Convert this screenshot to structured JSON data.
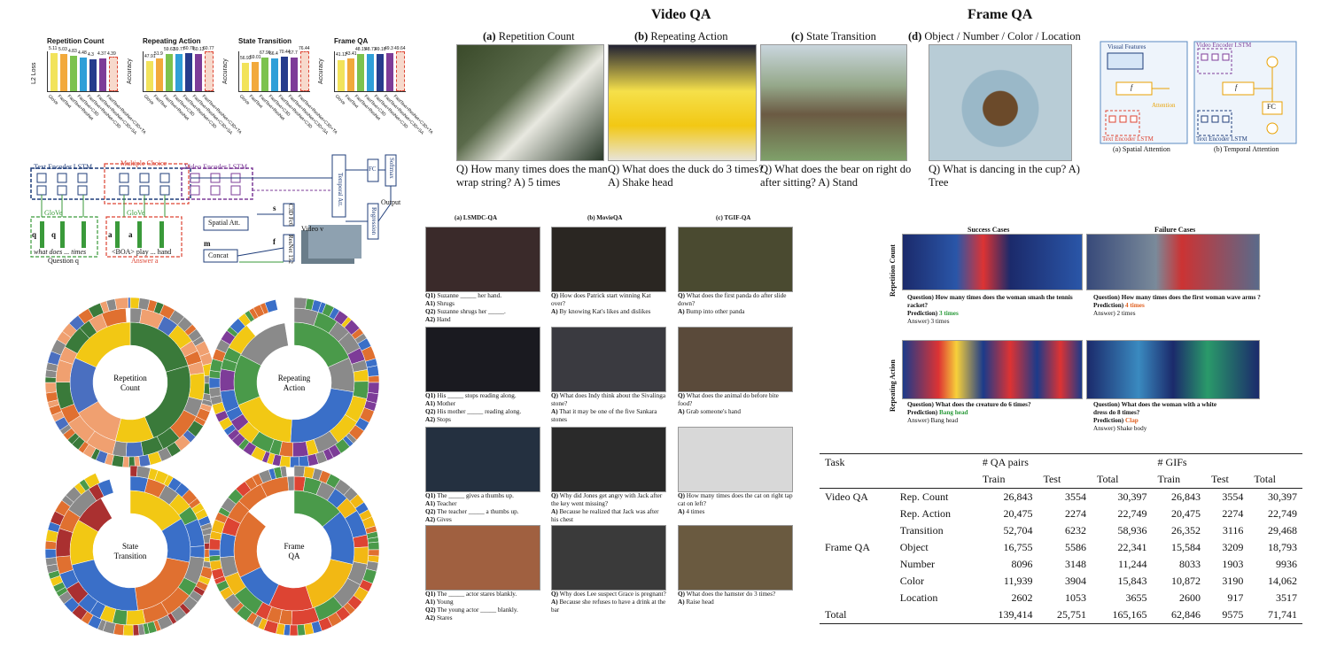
{
  "headers": {
    "video_qa": "Video QA",
    "frame_qa": "Frame QA"
  },
  "top_panels": [
    {
      "id": "(a)",
      "title": "Repetition Count",
      "q": "Q) How many times does the man wrap string?",
      "a": "A) 5 times"
    },
    {
      "id": "(b)",
      "title": "Repeating Action",
      "q": "Q) What does the duck do 3 times?",
      "a": "A) Shake head"
    },
    {
      "id": "(c)",
      "title": "State Transition",
      "q": "Q) What does the bear on right do after sitting?",
      "a": "A) Stand"
    },
    {
      "id": "(d)",
      "title": "Object / Number / Color / Location",
      "q": "Q) What is dancing in the cup?",
      "a": "A) Tree"
    }
  ],
  "bar_charts": [
    {
      "title": "Repetition Count",
      "ylabel": "L2 Loss",
      "values": [
        5.11,
        5.03,
        4.83,
        4.48,
        4.3,
        4.37,
        4.39
      ],
      "labels": [
        "GloVe",
        "FastText",
        "FastText+ResNet",
        "FastText+C3D",
        "FastText+ResNet+C3D",
        "FastText+ResNet+C3D+SA",
        "FastText+ResNet+C3D+TA"
      ]
    },
    {
      "title": "Repeating Action",
      "ylabel": "Accuracy",
      "values": [
        47.91,
        51.9,
        59.63,
        59.77,
        60.78,
        60.13,
        60.77
      ],
      "labels": [
        "GloVe",
        "FastText",
        "FastText+ResNet",
        "FastText+C3D",
        "FastText+ResNet+C3D",
        "FastText+ResNet+C3D+SA",
        "FastText+ResNet+C3D+TA"
      ]
    },
    {
      "title": "State Transition",
      "ylabel": "Accuracy",
      "values": [
        56.93,
        59.01,
        67.96,
        66.4,
        70.44,
        67.7,
        76.44
      ],
      "labels": [
        "GloVe",
        "FastText",
        "FastText+ResNet",
        "FastText+C3D",
        "FastText+ResNet+C3D",
        "FastText+ResNet+C3D+SA",
        "FastText+ResNet+C3D+TA"
      ]
    },
    {
      "title": "Frame QA",
      "ylabel": "Accuracy",
      "values": [
        41.12,
        43.41,
        48.15,
        48.73,
        49.16,
        49.3,
        49.64
      ],
      "labels": [
        "GloVe",
        "FastText",
        "FastText+ResNet",
        "FastText+C3D",
        "FastText+ResNet+C3D",
        "FastText+ResNet+C3D+SA",
        "FastText+ResNet+C3D+TA"
      ]
    }
  ],
  "bar_colors": [
    "#f2e35b",
    "#f2a93b",
    "#7cc24e",
    "#2f9fd8",
    "#263c8c",
    "#7d3c98",
    "#f0a080"
  ],
  "architecture": {
    "text_encoder": "Text Encoder LSTM",
    "multiple_choice": "Multiple Choice",
    "video_encoder": "Video Encoder LSTM",
    "temporal_att": "Temporal Att.",
    "fc": "FC",
    "softmax": "Softmax",
    "output": "Output",
    "regression": "Regression",
    "spatial_att": "Spatial Att.",
    "concat": "Concat",
    "glove1": "GloVe",
    "glove2": "GloVe",
    "question": "Question q",
    "answer": "Answer a",
    "q_words": "what    does ...  times",
    "a_words": "<BOA>  play ...  hand",
    "c3d": "C3D Fc6",
    "resnet": "ResNet 152",
    "video": "Video v",
    "st": "s",
    "ft": "f",
    "mt": "m",
    "q1": "q",
    "q2": "q",
    "a1": "a",
    "a2": "a"
  },
  "sunbursts": [
    {
      "label": "Repetition\nCount",
      "line1": "Repetition",
      "line2": "Count"
    },
    {
      "label": "Repeating\nAction",
      "line1": "Repeating",
      "line2": "Action"
    },
    {
      "label": "State\nTransition",
      "line1": "State",
      "line2": "Transition"
    },
    {
      "label": "Frame\nQA",
      "line1": "Frame",
      "line2": "QA"
    }
  ],
  "dataset_cols": [
    "(a) LSMDC-QA",
    "(b) MovieQA",
    "(c) TGIF-QA"
  ],
  "dataset_rows": [
    [
      [
        "Q1) Suzanne _____ her hand.",
        "A1) Shrugs",
        "Q2) Suzanne shrugs her _____.",
        "A2) Hand"
      ],
      [
        "Q) How does Patrick start winning Kat over?",
        "A) By knowing Kat's likes and dislikes"
      ],
      [
        "Q) What does the first panda do after slide down?",
        "A) Bump into other panda"
      ]
    ],
    [
      [
        "Q1) His _____ stops reading along.",
        "A1) Mother",
        "Q2) His mother _____ reading along.",
        "A2) Stops"
      ],
      [
        "Q) What does Indy think about the Sivalinga stone?",
        "A) That it may be one of the five Sankara stones"
      ],
      [
        "Q) What does the animal do before bite food?",
        "A) Grab someone's hand"
      ]
    ],
    [
      [
        "Q1) The _____ gives a thumbs up.",
        "A1) Teacher",
        "Q2) The teacher _____ a thumbs up.",
        "A2) Gives"
      ],
      [
        "Q) Why did Jones get angry with Jack after the key went missing?",
        "A) Because he realized that Jack was after his chest"
      ],
      [
        "Q) How many times does the cat on right tap cat on left?",
        "A) 4 times"
      ]
    ],
    [
      [
        "Q1) The _____ actor stares blankly.",
        "A1) Young",
        "Q2) The young actor _____ blankly.",
        "A2) Stares"
      ],
      [
        "Q) Why does Lee suspect Grace is pregnant?",
        "A) Because she refuses to have a drink at the bar"
      ],
      [
        "Q) What does the hamster do 3 times?",
        "A) Raise head"
      ]
    ]
  ],
  "attention": {
    "visual_features": "Visual Features",
    "text_encoder": "Text Encoder LSTM",
    "video_encoder": "Video Encoder LSTM",
    "attention": "Attention",
    "fatt": "f",
    "fc": "FC",
    "spatial_caption": "(a) Spatial Attention",
    "temporal_caption": "(b) Temporal Attention"
  },
  "cases": {
    "success_title": "Success Cases",
    "failure_title": "Failure Cases",
    "row1_label": "Repetition Count",
    "row2_label": "Repeating Action",
    "s1": {
      "q": "Question) How many times does the woman smash the tennis racket?",
      "p_label": "Prediction)",
      "p": "3 times",
      "a": "Answer) 3 times"
    },
    "f1": {
      "q": "Question) How many times does the first woman wave arms ?",
      "p_label": "Prediction)",
      "p": "4 times",
      "a": "Answer) 2 times"
    },
    "s2": {
      "q": "Question) What does the creature do 6 times?",
      "p_label": "Prediction)",
      "p": "Bang head",
      "a": "Answer) Bang head"
    },
    "f2": {
      "q": "Question) What does the woman with a white dress do 8 times?",
      "p_label": "Prediction)",
      "p": "Clap",
      "a": "Answer) Shake body"
    }
  },
  "table": {
    "h_task": "Task",
    "h_qa": "# QA pairs",
    "h_gifs": "# GIFs",
    "sub": [
      "Train",
      "Test",
      "Total",
      "Train",
      "Test",
      "Total"
    ],
    "rows": [
      {
        "group": "Video QA",
        "task": "Rep. Count",
        "v": [
          "26,843",
          "3554",
          "30,397",
          "26,843",
          "3554",
          "30,397"
        ]
      },
      {
        "group": "",
        "task": "Rep. Action",
        "v": [
          "20,475",
          "2274",
          "22,749",
          "20,475",
          "2274",
          "22,749"
        ]
      },
      {
        "group": "",
        "task": "Transition",
        "v": [
          "52,704",
          "6232",
          "58,936",
          "26,352",
          "3116",
          "29,468"
        ]
      },
      {
        "group": "Frame QA",
        "task": "Object",
        "v": [
          "16,755",
          "5586",
          "22,341",
          "15,584",
          "3209",
          "18,793"
        ]
      },
      {
        "group": "",
        "task": "Number",
        "v": [
          "8096",
          "3148",
          "11,244",
          "8033",
          "1903",
          "9936"
        ]
      },
      {
        "group": "",
        "task": "Color",
        "v": [
          "11,939",
          "3904",
          "15,843",
          "10,872",
          "3190",
          "14,062"
        ]
      },
      {
        "group": "",
        "task": "Location",
        "v": [
          "2602",
          "1053",
          "3655",
          "2600",
          "917",
          "3517"
        ]
      }
    ],
    "total": {
      "group": "Total",
      "v": [
        "139,414",
        "25,751",
        "165,165",
        "62,846",
        "9575",
        "71,741"
      ]
    }
  }
}
